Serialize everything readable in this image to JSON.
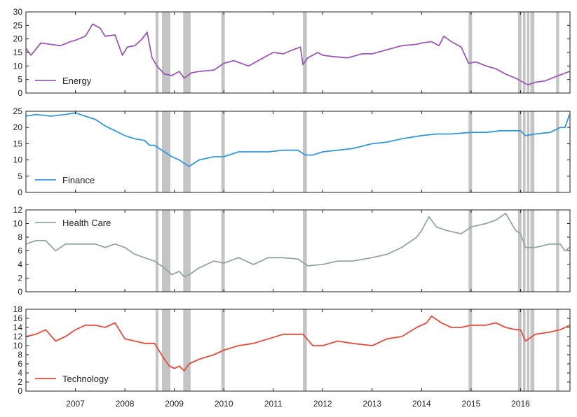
{
  "chart_data": [
    {
      "type": "line",
      "name": "Energy",
      "color": "#9b59b6",
      "ylim": [
        0,
        30
      ],
      "yticks": [
        0,
        5,
        10,
        15,
        20,
        25,
        30
      ],
      "legend": "bottom-left",
      "series": [
        {
          "name": "Energy",
          "x": [
            2006.0,
            2006.1,
            2006.3,
            2006.5,
            2006.7,
            2006.9,
            2007.0,
            2007.2,
            2007.35,
            2007.5,
            2007.6,
            2007.8,
            2007.95,
            2008.05,
            2008.2,
            2008.35,
            2008.45,
            2008.55,
            2008.65,
            2008.8,
            2008.95,
            2009.1,
            2009.2,
            2009.35,
            2009.5,
            2009.8,
            2010.0,
            2010.2,
            2010.5,
            2010.8,
            2011.0,
            2011.2,
            2011.4,
            2011.55,
            2011.6,
            2011.7,
            2011.9,
            2012.0,
            2012.2,
            2012.5,
            2012.8,
            2013.0,
            2013.3,
            2013.6,
            2013.9,
            2014.0,
            2014.2,
            2014.35,
            2014.45,
            2014.6,
            2014.8,
            2014.95,
            2015.1,
            2015.3,
            2015.5,
            2015.7,
            2015.9,
            2016.05,
            2016.15,
            2016.3,
            2016.5,
            2016.7,
            2016.85,
            2016.99
          ],
          "values": [
            16.5,
            14,
            18.5,
            18,
            17.5,
            19,
            19.5,
            21,
            25.5,
            24,
            21,
            21.5,
            14,
            17,
            17.5,
            20,
            22.5,
            13,
            10,
            7,
            6.5,
            8,
            5.5,
            7.5,
            8,
            8.5,
            11,
            12,
            10,
            13,
            15,
            14.5,
            16,
            17,
            10.5,
            13,
            15,
            14,
            13.5,
            13,
            14.5,
            14.5,
            16,
            17.5,
            18,
            18.5,
            19,
            17.5,
            21,
            19,
            17,
            11,
            11.5,
            10,
            9,
            7,
            5.5,
            4,
            3,
            4,
            4.5,
            6,
            7,
            8
          ]
        }
      ]
    },
    {
      "type": "line",
      "name": "Finance",
      "color": "#3498db",
      "ylim": [
        0,
        25
      ],
      "yticks": [
        0,
        5,
        10,
        15,
        20,
        25
      ],
      "legend": "bottom-left",
      "series": [
        {
          "name": "Finance",
          "x": [
            2006.0,
            2006.2,
            2006.5,
            2006.8,
            2007.0,
            2007.2,
            2007.4,
            2007.6,
            2007.8,
            2008.0,
            2008.2,
            2008.4,
            2008.5,
            2008.6,
            2008.8,
            2008.95,
            2009.1,
            2009.2,
            2009.3,
            2009.5,
            2009.8,
            2010.0,
            2010.3,
            2010.6,
            2010.9,
            2011.2,
            2011.5,
            2011.65,
            2011.8,
            2012.0,
            2012.3,
            2012.6,
            2013.0,
            2013.3,
            2013.6,
            2014.0,
            2014.3,
            2014.6,
            2015.0,
            2015.3,
            2015.6,
            2015.9,
            2016.0,
            2016.1,
            2016.3,
            2016.6,
            2016.8,
            2016.9,
            2016.99
          ],
          "values": [
            23.5,
            24,
            23.5,
            24,
            24.5,
            23.5,
            22.5,
            20.5,
            19,
            17.5,
            16.5,
            16,
            14.5,
            14.5,
            12.5,
            11,
            10,
            9,
            8,
            10,
            11,
            11,
            12.5,
            12.5,
            12.5,
            13,
            13,
            11.5,
            11.5,
            12.5,
            13,
            13.5,
            15,
            15.5,
            16.5,
            17.5,
            18,
            18,
            18.5,
            18.5,
            19,
            19,
            19,
            17.5,
            18,
            18.5,
            20,
            20,
            24
          ]
        }
      ]
    },
    {
      "type": "line",
      "name": "Health Care",
      "color": "#95a5a6",
      "ylim": [
        0,
        12
      ],
      "yticks": [
        0,
        2,
        4,
        6,
        8,
        10,
        12
      ],
      "legend": "top-left",
      "series": [
        {
          "name": "Health Care",
          "x": [
            2006.0,
            2006.2,
            2006.4,
            2006.6,
            2006.8,
            2007.0,
            2007.2,
            2007.4,
            2007.6,
            2007.8,
            2008.0,
            2008.2,
            2008.4,
            2008.6,
            2008.8,
            2008.95,
            2009.1,
            2009.2,
            2009.3,
            2009.5,
            2009.8,
            2010.0,
            2010.3,
            2010.6,
            2010.9,
            2011.2,
            2011.5,
            2011.7,
            2012.0,
            2012.3,
            2012.6,
            2013.0,
            2013.3,
            2013.6,
            2013.9,
            2014.0,
            2014.15,
            2014.3,
            2014.5,
            2014.8,
            2015.0,
            2015.3,
            2015.5,
            2015.7,
            2015.9,
            2016.0,
            2016.1,
            2016.3,
            2016.6,
            2016.8,
            2016.9,
            2016.99
          ],
          "values": [
            7,
            7.5,
            7.5,
            6,
            7,
            7,
            7,
            7,
            6.5,
            7,
            6.5,
            5.5,
            5,
            4.5,
            3.5,
            2.5,
            3,
            2.2,
            2.5,
            3.5,
            4.5,
            4.2,
            5,
            4,
            5,
            5,
            4.8,
            3.8,
            4,
            4.5,
            4.5,
            5,
            5.5,
            6.5,
            8,
            9,
            11,
            9.5,
            9,
            8.5,
            9.5,
            10,
            10.5,
            11.5,
            9,
            8.5,
            6.5,
            6.5,
            7,
            7,
            6,
            6.5
          ]
        }
      ]
    },
    {
      "type": "line",
      "name": "Technology",
      "color": "#e74c3c",
      "ylim": [
        0,
        18
      ],
      "yticks": [
        0,
        2,
        4,
        6,
        8,
        10,
        12,
        14,
        16,
        18
      ],
      "legend": "bottom-left",
      "series": [
        {
          "name": "Technology",
          "x": [
            2006.0,
            2006.2,
            2006.4,
            2006.6,
            2006.8,
            2007.0,
            2007.2,
            2007.4,
            2007.6,
            2007.8,
            2008.0,
            2008.2,
            2008.4,
            2008.6,
            2008.8,
            2008.9,
            2009.0,
            2009.1,
            2009.2,
            2009.3,
            2009.5,
            2009.8,
            2010.0,
            2010.3,
            2010.6,
            2010.9,
            2011.2,
            2011.4,
            2011.6,
            2011.8,
            2012.0,
            2012.3,
            2012.6,
            2013.0,
            2013.3,
            2013.6,
            2013.9,
            2014.1,
            2014.2,
            2014.4,
            2014.6,
            2014.8,
            2015.0,
            2015.3,
            2015.5,
            2015.7,
            2015.9,
            2016.0,
            2016.1,
            2016.3,
            2016.6,
            2016.8,
            2016.9,
            2016.99
          ],
          "values": [
            12,
            12.5,
            13.5,
            11,
            12,
            13.5,
            14.5,
            14.5,
            14,
            15,
            11.5,
            11,
            10.5,
            10.5,
            7,
            5.5,
            5,
            5.5,
            4.5,
            6,
            7,
            8,
            9,
            10,
            10.5,
            11.5,
            12.5,
            12.5,
            12.5,
            10,
            10,
            11,
            10.5,
            10,
            11.5,
            12,
            14,
            15,
            16.5,
            15,
            14,
            14,
            14.5,
            14.5,
            15,
            14,
            13.5,
            13.5,
            11,
            12.5,
            13,
            13.5,
            14,
            14.5
          ]
        }
      ]
    }
  ],
  "shared": {
    "xlim": [
      2006.0,
      2017.0
    ],
    "xticks": [
      2007,
      2008,
      2009,
      2010,
      2011,
      2012,
      2013,
      2014,
      2015,
      2016
    ],
    "xtick_labels": [
      "2007",
      "2008",
      "2009",
      "2010",
      "2011",
      "2012",
      "2013",
      "2014",
      "2015",
      "2016"
    ],
    "shaded_band_color": "#b5b5b5",
    "shaded_bands": [
      [
        2008.62,
        2008.68
      ],
      [
        2008.75,
        2008.92
      ],
      [
        2009.18,
        2009.33
      ],
      [
        2009.95,
        2010.02
      ],
      [
        2011.6,
        2011.68
      ],
      [
        2014.95,
        2015.02
      ],
      [
        2015.95,
        2016.02
      ],
      [
        2016.05,
        2016.1
      ],
      [
        2016.13,
        2016.18
      ],
      [
        2016.2,
        2016.28
      ],
      [
        2016.72,
        2016.78
      ]
    ],
    "grid": false
  }
}
